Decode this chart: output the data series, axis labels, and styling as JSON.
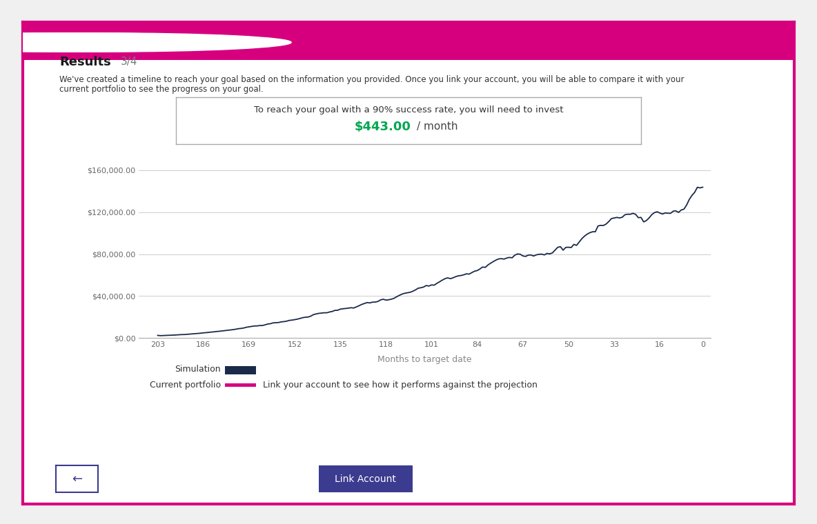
{
  "bg_color": "#ffffff",
  "outer_border_color": "#d6007f",
  "title_bar_color": "#d6007f",
  "title": "Results",
  "title_step": "3/4",
  "desc_line1": "We've created a timeline to reach your goal based on the information you provided. Once you link your account, you will be able to compare it with your",
  "desc_line2": "current portfolio to see the progress on your goal.",
  "invest_box_text": "To reach your goal with a 90% success rate, you will need to invest",
  "invest_amount": "$443.00",
  "invest_period": "/ month",
  "amount_color": "#00a651",
  "chart_line_color": "#1b2a4a",
  "chart_xlabel": "Months to target date",
  "yticks": [
    0,
    40000,
    80000,
    120000,
    160000
  ],
  "ytick_labels": [
    "$0.00",
    "$40,000.00",
    "$80,000.00",
    "$120,000.00",
    "$160,000.00"
  ],
  "xticks": [
    203,
    186,
    169,
    152,
    135,
    118,
    101,
    84,
    67,
    50,
    33,
    16,
    0
  ],
  "ylim": [
    0,
    165000
  ],
  "xlim_left": 210,
  "xlim_right": -3,
  "simulation_label": "Simulation",
  "simulation_color": "#1b2a4a",
  "portfolio_label": "Current portfolio",
  "portfolio_color": "#d6007f",
  "portfolio_note": "Link your account to see how it performs against the projection",
  "back_btn_border": "#3b3b8f",
  "back_btn_text_color": "#3b3b8f",
  "link_btn_color": "#3b3b8f",
  "link_btn_text": "Link Account",
  "link_btn_text_color": "#ffffff",
  "grid_color": "#cccccc",
  "text_dark": "#1a1a1a",
  "text_gray": "#555555",
  "dot_colors": [
    "#ffffff",
    "#ffffff",
    "#ffffff"
  ]
}
